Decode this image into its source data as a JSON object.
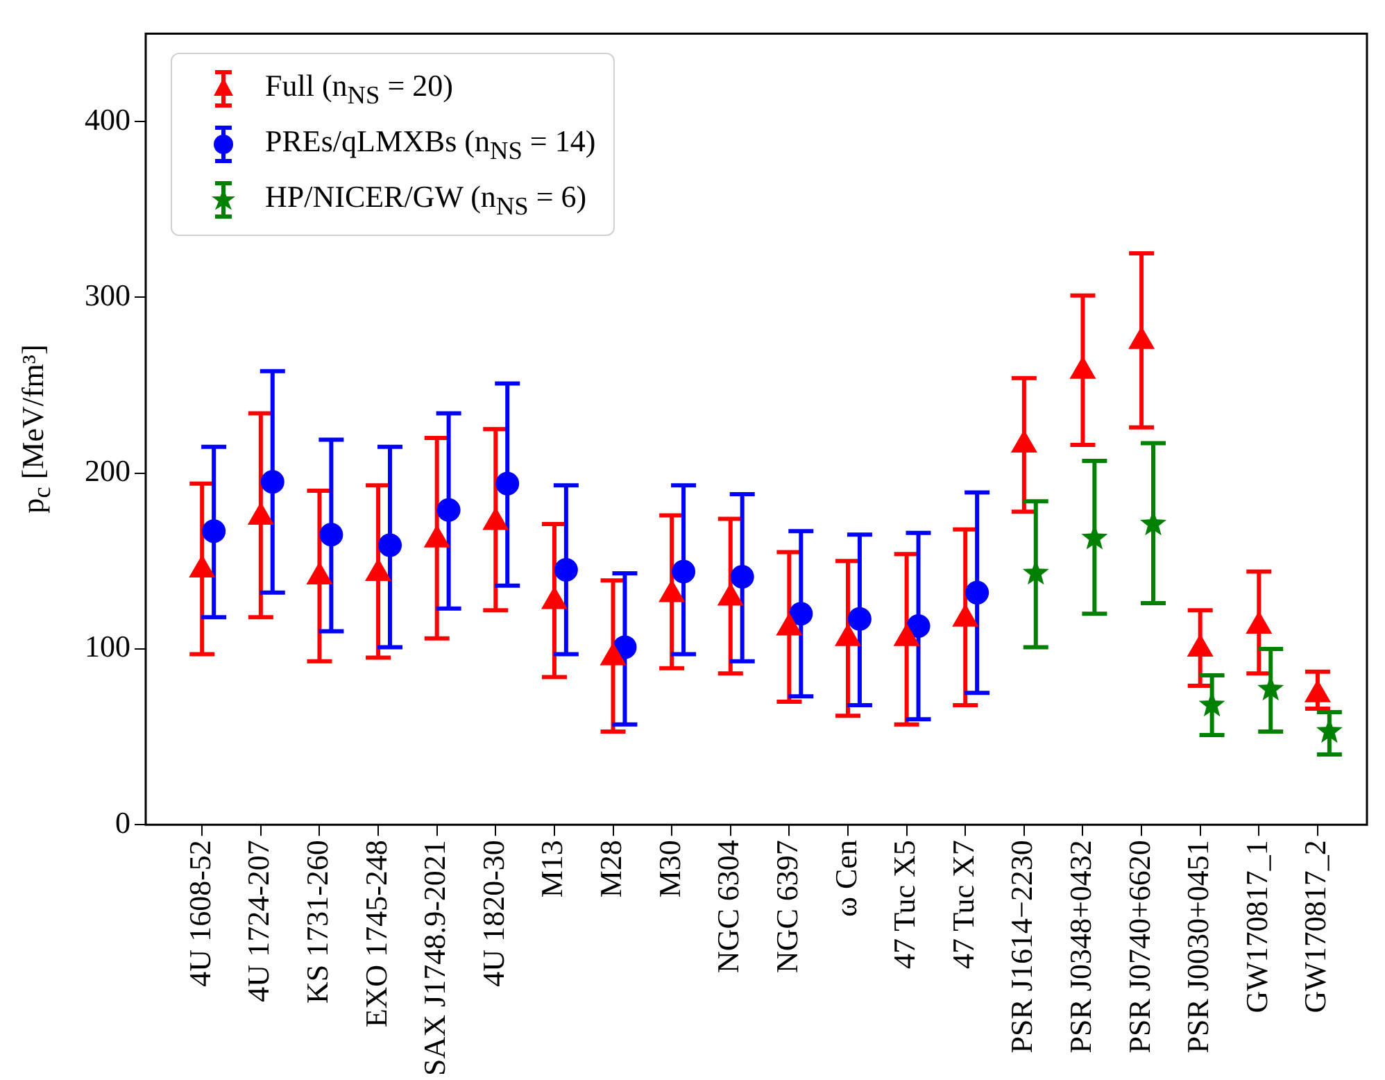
{
  "chart_data": {
    "type": "scatter",
    "ylabel": "p$_{c}$ [MeV/fm³]",
    "categories": [
      "4U 1608-52",
      "4U 1724-207",
      "KS 1731-260",
      "EXO 1745-248",
      "SAX J1748.9-2021",
      "4U 1820-30",
      "M13",
      "M28",
      "M30",
      "NGC 6304",
      "NGC 6397",
      "ω Cen",
      "47 Tuc X5",
      "47 Tuc X7",
      "PSR J1614−2230",
      "PSR J0348+0432",
      "PSR J0740+6620",
      "PSR J0030+0451",
      "GW170817_1",
      "GW170817_2"
    ],
    "series": [
      {
        "name": "Full (n$_{NS}$ = 20)",
        "color": "#ff0000",
        "marker": "triangle",
        "values": [
          145,
          175,
          141,
          143,
          162,
          172,
          127,
          95,
          131,
          129,
          112,
          106,
          106,
          117,
          216,
          258,
          275,
          100,
          113,
          74
        ],
        "errors": [
          [
            97,
            194
          ],
          [
            118,
            234
          ],
          [
            93,
            190
          ],
          [
            95,
            193
          ],
          [
            106,
            220
          ],
          [
            122,
            225
          ],
          [
            84,
            171
          ],
          [
            53,
            139
          ],
          [
            89,
            176
          ],
          [
            86,
            174
          ],
          [
            70,
            155
          ],
          [
            62,
            150
          ],
          [
            57,
            154
          ],
          [
            68,
            168
          ],
          [
            178,
            254
          ],
          [
            216,
            301
          ],
          [
            226,
            325
          ],
          [
            79,
            122
          ],
          [
            86,
            144
          ],
          [
            66,
            87
          ]
        ]
      },
      {
        "name": "PREs/qLMXBs (n$_{NS}$ = 14)",
        "color": "#0000ff",
        "marker": "circle",
        "values": [
          167,
          195,
          165,
          159,
          179,
          194,
          145,
          101,
          144,
          141,
          120,
          117,
          113,
          132,
          null,
          null,
          null,
          null,
          null,
          null
        ],
        "errors": [
          [
            118,
            215
          ],
          [
            132,
            258
          ],
          [
            110,
            219
          ],
          [
            101,
            215
          ],
          [
            123,
            234
          ],
          [
            136,
            251
          ],
          [
            97,
            193
          ],
          [
            57,
            143
          ],
          [
            97,
            193
          ],
          [
            93,
            188
          ],
          [
            73,
            167
          ],
          [
            68,
            165
          ],
          [
            60,
            166
          ],
          [
            75,
            189
          ],
          null,
          null,
          null,
          null,
          null,
          null
        ]
      },
      {
        "name": "HP/NICER/GW (n$_{NS}$ = 6)",
        "color": "#008000",
        "marker": "star",
        "values": [
          null,
          null,
          null,
          null,
          null,
          null,
          null,
          null,
          null,
          null,
          null,
          null,
          null,
          null,
          143,
          163,
          171,
          68,
          77,
          53
        ],
        "errors": [
          null,
          null,
          null,
          null,
          null,
          null,
          null,
          null,
          null,
          null,
          null,
          null,
          null,
          null,
          [
            101,
            184
          ],
          [
            120,
            207
          ],
          [
            126,
            217
          ],
          [
            51,
            85
          ],
          [
            53,
            100
          ],
          [
            40,
            64
          ]
        ]
      }
    ],
    "ylim": [
      0,
      450
    ],
    "yticks": [
      0,
      100,
      200,
      300,
      400
    ],
    "grid": false,
    "legend": "top left"
  }
}
